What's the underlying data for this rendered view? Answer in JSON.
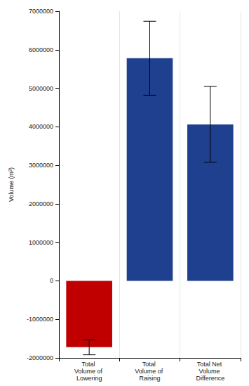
{
  "chart_data": {
    "type": "bar",
    "y_label": "Volume (m³)",
    "categories": [
      "Total Volume of Lowering",
      "Total Volume of Raising",
      "Total Net Volume Difference"
    ],
    "values": [
      -1720000,
      5780000,
      4060000
    ],
    "error_low": [
      -1920000,
      4820000,
      3080000
    ],
    "error_high": [
      -1530000,
      6740000,
      5050000
    ],
    "colors": [
      "#c00000",
      "#1f3f8f",
      "#1f3f8f"
    ],
    "ylim": [
      -2000000,
      7000000
    ],
    "yticks": [
      -2000000,
      -1000000,
      0,
      1000000,
      2000000,
      3000000,
      4000000,
      5000000,
      6000000,
      7000000
    ],
    "grid": true
  }
}
